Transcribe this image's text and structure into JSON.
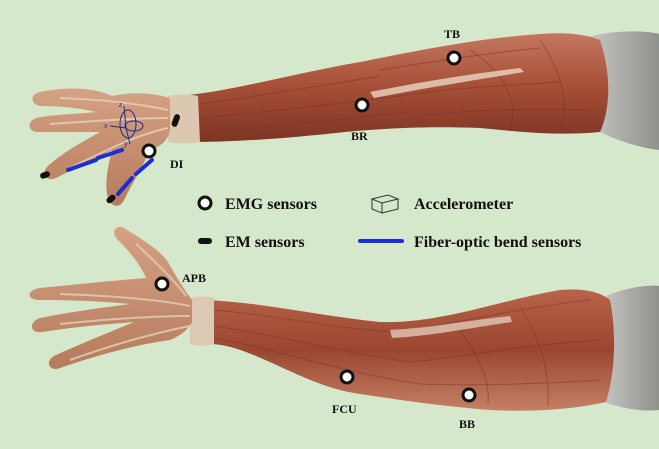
{
  "muscle_labels": {
    "tb": "TB",
    "br": "BR",
    "di": "DI",
    "apb": "APB",
    "fcu": "FCU",
    "bb": "BB"
  },
  "legend": {
    "emg": "EMG sensors",
    "accelerometer": "Accelerometer",
    "em": "EM sensors",
    "fiber": "Fiber-optic bend sensors"
  },
  "axes": {
    "x": "x",
    "y": "y",
    "z": "z"
  },
  "colors": {
    "background": "#d6e8cc",
    "fiber_sensor": "#1b2fd0",
    "em_sensor": "#111111",
    "emg_ring": "#111111",
    "skin": "#c89170",
    "muscle": "#a5513a",
    "tendon": "#d9c3ad",
    "fascia": "#a9a9a9"
  }
}
